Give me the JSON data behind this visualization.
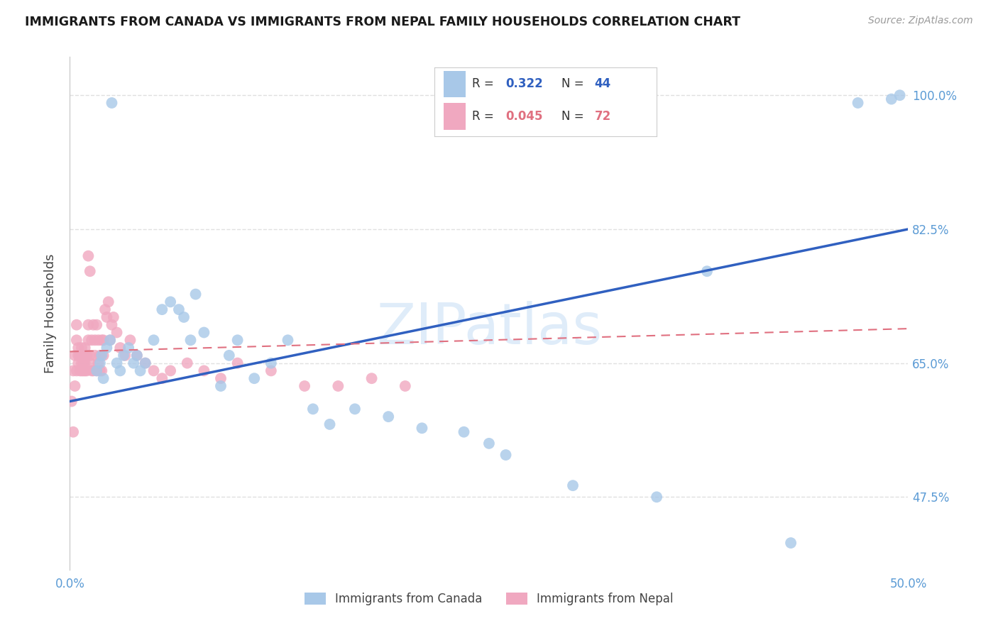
{
  "title": "IMMIGRANTS FROM CANADA VS IMMIGRANTS FROM NEPAL FAMILY HOUSEHOLDS CORRELATION CHART",
  "source": "Source: ZipAtlas.com",
  "ylabel": "Family Households",
  "ytick_labels": [
    "100.0%",
    "82.5%",
    "65.0%",
    "47.5%"
  ],
  "ytick_values": [
    1.0,
    0.825,
    0.65,
    0.475
  ],
  "xlim": [
    0.0,
    0.5
  ],
  "ylim": [
    0.38,
    1.05
  ],
  "canada_color": "#a8c8e8",
  "nepal_color": "#f0a8c0",
  "canada_line_color": "#3060c0",
  "nepal_line_color": "#e07080",
  "watermark": "ZIPatlas",
  "background_color": "#ffffff",
  "grid_color": "#e0e0e0",
  "canada_x": [
    0.016,
    0.018,
    0.019,
    0.02,
    0.022,
    0.024,
    0.025,
    0.028,
    0.03,
    0.032,
    0.035,
    0.038,
    0.04,
    0.042,
    0.045,
    0.05,
    0.055,
    0.06,
    0.065,
    0.068,
    0.072,
    0.075,
    0.08,
    0.09,
    0.095,
    0.1,
    0.11,
    0.12,
    0.13,
    0.145,
    0.155,
    0.17,
    0.19,
    0.21,
    0.235,
    0.25,
    0.26,
    0.3,
    0.35,
    0.38,
    0.43,
    0.47,
    0.49,
    0.495
  ],
  "canada_y": [
    0.64,
    0.65,
    0.66,
    0.63,
    0.67,
    0.68,
    0.99,
    0.65,
    0.64,
    0.66,
    0.67,
    0.65,
    0.66,
    0.64,
    0.65,
    0.68,
    0.72,
    0.73,
    0.72,
    0.71,
    0.68,
    0.74,
    0.69,
    0.62,
    0.66,
    0.68,
    0.63,
    0.65,
    0.68,
    0.59,
    0.57,
    0.59,
    0.58,
    0.565,
    0.56,
    0.545,
    0.53,
    0.49,
    0.475,
    0.77,
    0.415,
    0.99,
    0.995,
    1.0
  ],
  "nepal_x": [
    0.002,
    0.003,
    0.004,
    0.004,
    0.005,
    0.005,
    0.006,
    0.006,
    0.007,
    0.007,
    0.008,
    0.008,
    0.009,
    0.009,
    0.01,
    0.01,
    0.011,
    0.011,
    0.012,
    0.012,
    0.013,
    0.013,
    0.014,
    0.014,
    0.015,
    0.015,
    0.016,
    0.016,
    0.017,
    0.017,
    0.018,
    0.018,
    0.019,
    0.019,
    0.02,
    0.02,
    0.021,
    0.022,
    0.023,
    0.024,
    0.025,
    0.026,
    0.028,
    0.03,
    0.033,
    0.036,
    0.04,
    0.045,
    0.05,
    0.055,
    0.06,
    0.07,
    0.08,
    0.09,
    0.1,
    0.12,
    0.14,
    0.16,
    0.18,
    0.2,
    0.001,
    0.002,
    0.003,
    0.004,
    0.005,
    0.006,
    0.007,
    0.008,
    0.009,
    0.01,
    0.011,
    0.012
  ],
  "nepal_y": [
    0.64,
    0.66,
    0.68,
    0.7,
    0.65,
    0.67,
    0.64,
    0.66,
    0.65,
    0.67,
    0.64,
    0.66,
    0.65,
    0.67,
    0.64,
    0.66,
    0.68,
    0.7,
    0.65,
    0.66,
    0.64,
    0.68,
    0.7,
    0.64,
    0.66,
    0.68,
    0.64,
    0.7,
    0.65,
    0.68,
    0.64,
    0.66,
    0.68,
    0.64,
    0.66,
    0.68,
    0.72,
    0.71,
    0.73,
    0.68,
    0.7,
    0.71,
    0.69,
    0.67,
    0.66,
    0.68,
    0.66,
    0.65,
    0.64,
    0.63,
    0.64,
    0.65,
    0.64,
    0.63,
    0.65,
    0.64,
    0.62,
    0.62,
    0.63,
    0.62,
    0.6,
    0.56,
    0.62,
    0.64,
    0.66,
    0.66,
    0.64,
    0.65,
    0.64,
    0.66,
    0.79,
    0.77
  ]
}
